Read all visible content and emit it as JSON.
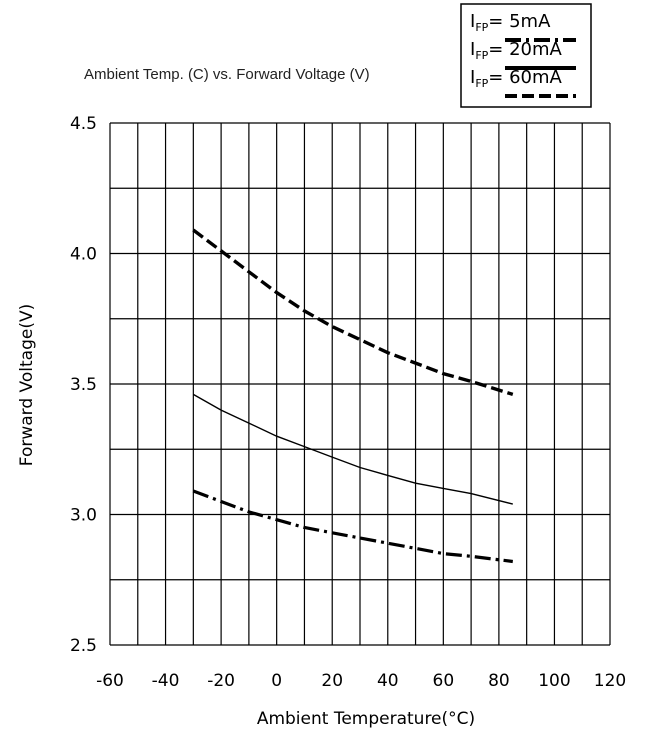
{
  "chart_data": {
    "type": "line",
    "title": "Ambient Temp. (C) vs. Forward Voltage (V)",
    "xlabel": "Ambient Temperature(°C)",
    "ylabel": "Forward Voltage(V)",
    "xlim": [
      -60,
      120
    ],
    "ylim": [
      2.5,
      4.5
    ],
    "x_ticks": [
      "-60",
      "-40",
      "-20",
      "0",
      "20",
      "40",
      "60",
      "80",
      "100",
      "120"
    ],
    "y_ticks": [
      "2.5",
      "3.0",
      "3.5",
      "4.0",
      "4.5"
    ],
    "grid": true,
    "legend_position": "top-right",
    "series": [
      {
        "name": "IFP= 5mA",
        "label_main": "I",
        "label_sub": "FP",
        "label_rest": "= 5mA",
        "line_style": "dash-dot",
        "x": [
          -30,
          -20,
          -10,
          0,
          10,
          20,
          30,
          40,
          50,
          60,
          70,
          85
        ],
        "y": [
          3.09,
          3.05,
          3.01,
          2.98,
          2.95,
          2.93,
          2.91,
          2.89,
          2.87,
          2.85,
          2.84,
          2.82
        ]
      },
      {
        "name": "IFP= 20mA",
        "label_main": "I",
        "label_sub": "FP",
        "label_rest": "= 20mA",
        "line_style": "solid",
        "x": [
          -30,
          -20,
          -10,
          0,
          10,
          20,
          30,
          40,
          50,
          60,
          70,
          85
        ],
        "y": [
          3.46,
          3.4,
          3.35,
          3.3,
          3.26,
          3.22,
          3.18,
          3.15,
          3.12,
          3.1,
          3.08,
          3.04
        ]
      },
      {
        "name": "IFP= 60mA",
        "label_main": "I",
        "label_sub": "FP",
        "label_rest": "= 60mA",
        "line_style": "dashed",
        "x": [
          -30,
          -20,
          -10,
          0,
          10,
          20,
          30,
          40,
          50,
          60,
          70,
          85
        ],
        "y": [
          4.09,
          4.01,
          3.93,
          3.85,
          3.78,
          3.72,
          3.67,
          3.62,
          3.58,
          3.54,
          3.51,
          3.46
        ]
      }
    ]
  }
}
